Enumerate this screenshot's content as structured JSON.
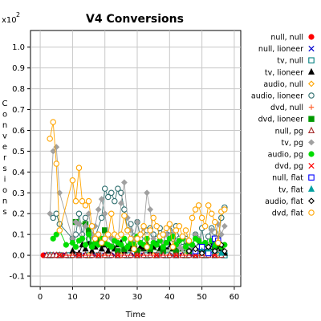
{
  "chart_data": {
    "type": "line",
    "title": "V4 Conversions",
    "xlabel": "Time",
    "ylabel": "Conversions",
    "y_multiplier": "x10",
    "y_multiplier_exp": "2",
    "xlim": [
      -3,
      62
    ],
    "ylim": [
      -0.15,
      1.08
    ],
    "x_ticks": [
      0,
      10,
      20,
      30,
      40,
      50,
      60
    ],
    "y_ticks": [
      -0.1,
      0.0,
      0.1,
      0.2,
      0.3,
      0.4,
      0.5,
      0.6,
      0.7,
      0.8,
      0.9,
      1.0
    ],
    "y_tick_labels": [
      "-0.1",
      "0.0",
      "0.1",
      "0.2",
      "0.3",
      "0.4",
      "0.5",
      "0.6",
      "0.7",
      "0.8",
      "0.9",
      "1.0"
    ],
    "grid": true,
    "legend_position": "right",
    "series": [
      {
        "name": "null, null",
        "color": "#ff0000",
        "marker": "circle-filled",
        "x": [
          1,
          2,
          3,
          4,
          5,
          6,
          7,
          8,
          10,
          12,
          14,
          16,
          18,
          20,
          22,
          24,
          26,
          28,
          30,
          32,
          34,
          36,
          38,
          40,
          42,
          44,
          46,
          48,
          50,
          52,
          54,
          56,
          57
        ],
        "y": [
          0,
          0,
          0,
          0,
          0,
          0,
          0,
          0,
          0,
          0,
          0,
          0,
          0,
          0,
          0,
          0,
          0,
          0,
          0,
          0,
          0,
          0,
          0,
          0,
          0,
          0,
          0,
          0,
          0,
          0,
          0,
          0,
          0
        ]
      },
      {
        "name": "null, lioneer",
        "color": "#0000cc",
        "marker": "x",
        "x": [
          2,
          5,
          8,
          11,
          14,
          17,
          20,
          23,
          26,
          29,
          32,
          35,
          38,
          41,
          44,
          47,
          50,
          52,
          54,
          56
        ],
        "y": [
          0,
          0,
          0,
          0,
          0,
          0,
          0,
          0,
          0,
          0,
          0,
          0,
          0,
          0,
          0,
          0,
          0,
          0.02,
          0.01,
          0
        ]
      },
      {
        "name": "tv, null",
        "color": "#008080",
        "marker": "square-open",
        "x": [
          3,
          6,
          9,
          12,
          15,
          18,
          21,
          24,
          27,
          30,
          33,
          36,
          39,
          42,
          45,
          48,
          51,
          54,
          57
        ],
        "y": [
          0,
          0,
          0,
          0,
          0,
          0,
          0,
          0,
          0,
          0,
          0,
          0,
          0,
          0,
          0,
          0,
          0,
          0,
          0
        ]
      },
      {
        "name": "tv, lioneer",
        "color": "#000000",
        "marker": "triangle-filled",
        "x": [
          10,
          12,
          13,
          14,
          15,
          16,
          17,
          18,
          19,
          20,
          21,
          22,
          23,
          24,
          25,
          26,
          27,
          28,
          29,
          30,
          31,
          32,
          33,
          34,
          35,
          36,
          37,
          38,
          39,
          40,
          41,
          42,
          43,
          44,
          45,
          46,
          47,
          48,
          49,
          50,
          51,
          52,
          53,
          54,
          55,
          56,
          57
        ],
        "y": [
          0.02,
          0.01,
          0.05,
          0.03,
          0.06,
          0.02,
          0.04,
          0.06,
          0.03,
          0.05,
          0.02,
          0.04,
          0.03,
          0.05,
          0.06,
          0.02,
          0.04,
          0.03,
          0.05,
          0.02,
          0.04,
          0.03,
          0.05,
          0.02,
          0.04,
          0.06,
          0.03,
          0.02,
          0.04,
          0.05,
          0.03,
          0.02,
          0.04,
          0.03,
          0.05,
          0.02,
          0.04,
          0.03,
          0.05,
          0.02,
          0.04,
          0.03,
          0.05,
          0.02,
          0.04,
          0.03,
          0.01
        ]
      },
      {
        "name": "audio, null",
        "color": "#ffa500",
        "marker": "diamond-open",
        "x": [
          10,
          15,
          20,
          25,
          30,
          35,
          40,
          45,
          50,
          55
        ],
        "y": [
          0,
          0,
          0,
          0,
          0,
          0,
          0,
          0,
          0,
          0
        ]
      },
      {
        "name": "audio, lioneer",
        "color": "#2f6f6f",
        "marker": "circle-open",
        "x": [
          4,
          5,
          6,
          10,
          11,
          12,
          13,
          14,
          15,
          17,
          19,
          20,
          21,
          22,
          23,
          24,
          25,
          26,
          27,
          28,
          29,
          30,
          31,
          33,
          34,
          35,
          36,
          37,
          38,
          39,
          40,
          41,
          42,
          43,
          44,
          45,
          46,
          47,
          48,
          49,
          50,
          51,
          52,
          53,
          54,
          55,
          56,
          57
        ],
        "y": [
          0.18,
          0.2,
          0.15,
          0.08,
          0.1,
          0.2,
          0.1,
          0.18,
          0.08,
          0.09,
          0.18,
          0.32,
          0.28,
          0.3,
          0.26,
          0.32,
          0.3,
          0.22,
          0.12,
          0.15,
          0.09,
          0.16,
          0.08,
          0.12,
          0.13,
          0.1,
          0.08,
          0.13,
          0.1,
          0.05,
          0.12,
          0.08,
          0.14,
          0.08,
          0.04,
          0.08,
          0.06,
          0.05,
          0.1,
          0.04,
          0.13,
          0.03,
          0.09,
          0.13,
          0.11,
          0.08,
          0.18,
          0.23
        ]
      },
      {
        "name": "dvd, null",
        "color": "#ff6633",
        "marker": "plus",
        "x": [
          4,
          8,
          12,
          16,
          20,
          24,
          28,
          32,
          36,
          40,
          44,
          48,
          52,
          56
        ],
        "y": [
          0,
          0,
          0,
          0,
          0,
          0,
          0,
          0,
          0,
          0,
          0,
          0,
          0,
          0
        ]
      },
      {
        "name": "dvd, lioneer",
        "color": "#009900",
        "marker": "square-filled",
        "x": [
          11,
          14,
          15,
          16,
          18,
          19,
          20,
          24,
          26,
          30,
          34,
          38,
          42,
          46,
          50,
          54
        ],
        "y": [
          0.16,
          0.15,
          0.12,
          0.05,
          0.08,
          0.06,
          0.12,
          0.02,
          0.03,
          0.02,
          0.03,
          0.02,
          0.02,
          0.02,
          0.02,
          0.03
        ]
      },
      {
        "name": "null, pg",
        "color": "#a52a2a",
        "marker": "triangle-open",
        "x": [
          2,
          3,
          4,
          5,
          6,
          8,
          10,
          12,
          14,
          16,
          18,
          20,
          22,
          24,
          26,
          28,
          30,
          32,
          34,
          36,
          38,
          40,
          42,
          44,
          46,
          48,
          50,
          52,
          54,
          56
        ],
        "y": [
          0,
          0,
          0,
          0,
          0,
          0,
          0,
          0,
          0,
          0,
          0,
          0,
          0,
          0,
          0,
          0,
          0,
          0,
          0,
          0,
          0,
          0,
          0,
          0,
          0,
          0,
          0,
          0,
          0,
          0
        ]
      },
      {
        "name": "tv, pg",
        "color": "#a0a0a0",
        "marker": "diamond-filled",
        "x": [
          3,
          4,
          5,
          6,
          10,
          11,
          12,
          13,
          14,
          15,
          16,
          17,
          18,
          19,
          20,
          21,
          22,
          23,
          24,
          25,
          26,
          27,
          28,
          29,
          30,
          31,
          32,
          33,
          34,
          35,
          36,
          37,
          38,
          39,
          40,
          41,
          42,
          43,
          44,
          45,
          46,
          47,
          48,
          49,
          50,
          51,
          52,
          53,
          54,
          55,
          56,
          57
        ],
        "y": [
          0.2,
          0.5,
          0.52,
          0.3,
          0.08,
          0.16,
          0.15,
          0.08,
          0.14,
          0.2,
          0.1,
          0.14,
          0.22,
          0.27,
          0.2,
          0.1,
          0.08,
          0.1,
          0.06,
          0.25,
          0.35,
          0.18,
          0.12,
          0.08,
          0.16,
          0.1,
          0.13,
          0.3,
          0.22,
          0.08,
          0.05,
          0.07,
          0.06,
          0.1,
          0.14,
          0.1,
          0.06,
          0.04,
          0.03,
          0.07,
          0.06,
          0.04,
          0.1,
          0.08,
          0.05,
          0.06,
          0.05,
          0.12,
          0.08,
          0.15,
          0.1,
          0.14
        ]
      },
      {
        "name": "audio, pg",
        "color": "#00dd00",
        "marker": "circle-filled",
        "x": [
          4,
          5,
          6,
          8,
          10,
          11,
          12,
          13,
          14,
          15,
          16,
          17,
          18,
          19,
          20,
          21,
          22,
          23,
          24,
          25,
          26,
          27,
          28,
          29,
          30,
          31,
          32,
          33,
          34,
          35,
          36,
          37,
          38,
          39,
          40,
          41,
          42,
          43,
          44,
          45,
          46,
          47,
          48,
          49,
          50,
          51,
          52,
          53,
          54,
          55,
          56,
          57
        ],
        "y": [
          0.08,
          0.1,
          0.12,
          0.05,
          0.06,
          0.04,
          0.07,
          0.08,
          0.05,
          0.1,
          0.04,
          0.06,
          0.05,
          0.08,
          0.06,
          0.05,
          0.04,
          0.07,
          0.06,
          0.05,
          0.08,
          0.04,
          0.06,
          0.05,
          0.09,
          0.06,
          0.05,
          0.08,
          0.04,
          0.06,
          0.05,
          0.07,
          0.04,
          0.06,
          0.08,
          0.09,
          0.05,
          0.07,
          0.08,
          0.04,
          0.06,
          0.05,
          0.08,
          0.07,
          0.05,
          0.06,
          0.04,
          0.07,
          0.05,
          0.06,
          0.04,
          0.05
        ]
      },
      {
        "name": "dvd, pg",
        "color": "#ff0000",
        "marker": "x",
        "x": [
          6,
          12,
          18,
          24,
          30,
          36,
          42,
          48,
          54
        ],
        "y": [
          0,
          0,
          0,
          0,
          0,
          0,
          0,
          0,
          0
        ]
      },
      {
        "name": "null, flat",
        "color": "#0000ff",
        "marker": "square-open",
        "x": [
          48,
          50,
          52,
          54,
          55
        ],
        "y": [
          0.02,
          0.04,
          0.01,
          0.08,
          0.07
        ]
      },
      {
        "name": "tv, flat",
        "color": "#00a0a0",
        "marker": "triangle-filled",
        "x": [
          50,
          52,
          54,
          56
        ],
        "y": [
          0.02,
          0.03,
          0.02,
          0.01
        ]
      },
      {
        "name": "audio, flat",
        "color": "#000000",
        "marker": "diamond-open",
        "x": [
          46,
          48,
          50,
          52,
          54,
          56,
          57
        ],
        "y": [
          0.02,
          0.03,
          0.01,
          0.04,
          0.02,
          0.05,
          0.02
        ]
      },
      {
        "name": "dvd, flat",
        "color": "#ffa500",
        "marker": "circle-open",
        "x": [
          3,
          4,
          5,
          6,
          10,
          11,
          12,
          13,
          14,
          15,
          16,
          17,
          18,
          19,
          20,
          21,
          22,
          23,
          24,
          25,
          26,
          27,
          28,
          29,
          30,
          31,
          32,
          33,
          34,
          35,
          36,
          37,
          38,
          39,
          40,
          41,
          42,
          43,
          44,
          45,
          46,
          47,
          48,
          49,
          50,
          51,
          52,
          53,
          54,
          55,
          56,
          57
        ],
        "y": [
          0.56,
          0.64,
          0.44,
          0.12,
          0.36,
          0.26,
          0.42,
          0.26,
          0.24,
          0.26,
          0.14,
          0.08,
          0.1,
          0.06,
          0.08,
          0.1,
          0.2,
          0.1,
          0.09,
          0.1,
          0.19,
          0.12,
          0.08,
          0.03,
          0.08,
          0.1,
          0.14,
          0.04,
          0.12,
          0.18,
          0.14,
          0.09,
          0.1,
          0.13,
          0.15,
          0.04,
          0.12,
          0.14,
          0.09,
          0.12,
          0.07,
          0.18,
          0.22,
          0.24,
          0.18,
          0.14,
          0.24,
          0.2,
          0.16,
          0.06,
          0.21,
          0.22
        ]
      }
    ]
  }
}
